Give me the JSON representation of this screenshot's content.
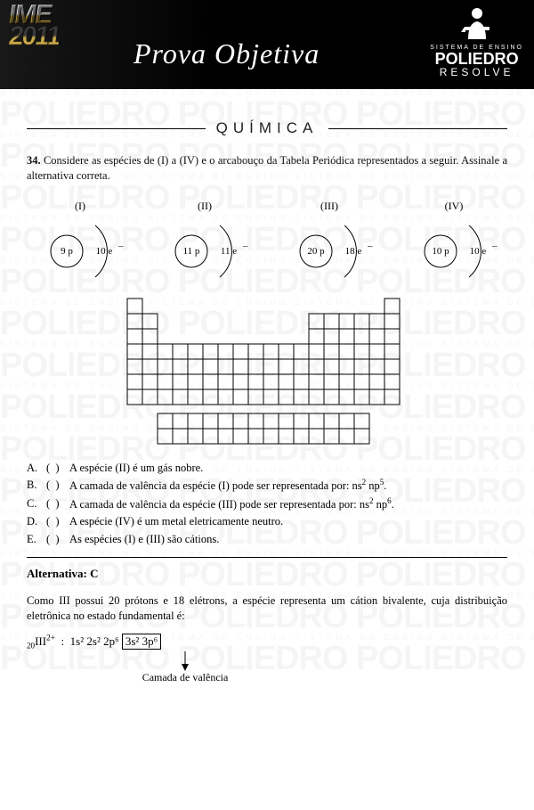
{
  "header": {
    "exam_name_1": "IME",
    "exam_year": "2011",
    "title_script": "Prova Objetiva",
    "brand_small": "SISTEMA DE ENSINO",
    "brand_big": "POLIEDRO",
    "brand_resolve": "RESOLVE",
    "bg_color": "#000000",
    "text_color": "#ffffff"
  },
  "watermark": {
    "line1": "SISTEMA DE ENSINO SISTEMA DE ENSINO SISTEMA DE ENSINO SISTEMA DE ENSINO",
    "line2": "POLIEDRO POLIEDRO POLIEDRO",
    "color": "#bfbfbf"
  },
  "section": {
    "label": "QUÍMICA",
    "line_color": "#000000"
  },
  "question": {
    "number": "34.",
    "text": "Considere as espécies de (I) a (IV) e o arcabouço da Tabela Periódica representados a seguir. Assinale a alternativa correta."
  },
  "species": [
    {
      "label": "(I)",
      "protons": "9 p",
      "electrons": "10 e",
      "e_sup": "–"
    },
    {
      "label": "(II)",
      "protons": "11 p",
      "electrons": "11 e",
      "e_sup": "–"
    },
    {
      "label": "(III)",
      "protons": "20 p",
      "electrons": "18 e",
      "e_sup": "–"
    },
    {
      "label": "(IV)",
      "protons": "10 p",
      "electrons": "10 e",
      "e_sup": "–"
    }
  ],
  "periodic_table": {
    "cell_size": 17,
    "stroke": "#000000",
    "main_rows": 7,
    "main_cols": 18,
    "f_block_rows": 2,
    "f_block_cols": 14
  },
  "alternatives": [
    {
      "letter": "A.",
      "text_plain": "A espécie (II) é um gás nobre."
    },
    {
      "letter": "B.",
      "text_html": "A camada de valência da espécie (I) pode ser representada por: ns<sup>2</sup> np<sup>5</sup>."
    },
    {
      "letter": "C.",
      "text_html": "A camada de valência da espécie (III) pode ser representada por: ns<sup>2</sup> np<sup>6</sup>."
    },
    {
      "letter": "D.",
      "text_plain": "A espécie (IV) é um metal eletricamente neutro."
    },
    {
      "letter": "E.",
      "text_plain": "As espécies (I) e (III) são cátions."
    }
  ],
  "answer": {
    "label": "Alternativa: C",
    "explanation": "Como III possui 20 prótons e 18 elétrons, a espécie representa um cátion bivalente, cuja distribuição eletrônica no estado fundamental é:",
    "config_prefix_sub": "20",
    "config_species": "III",
    "config_charge": "2+",
    "config_before_box": "1s² 2s² 2p⁶",
    "config_boxed": "3s² 3p⁶",
    "valence_label": "Camada de valência"
  },
  "colors": {
    "text": "#111111",
    "background": "#ffffff"
  }
}
